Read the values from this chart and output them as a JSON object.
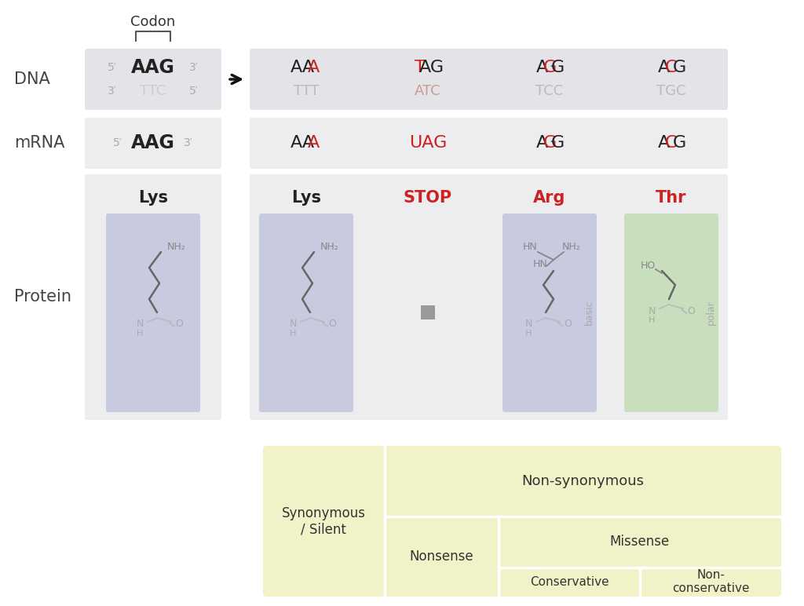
{
  "background_color": "#ffffff",
  "panel_bg": "#e4e4e8",
  "panel_bg_light": "#ededf0",
  "blue_bg": "#c8cadf",
  "green_bg": "#c8dfbe",
  "yellow_bg": "#f2f2c8",
  "title_codon": "Codon",
  "dna_top_cols": [
    [
      [
        "AA",
        "#222222"
      ],
      [
        "A",
        "#cc2222"
      ]
    ],
    [
      [
        "T",
        "#cc2222"
      ],
      [
        "AG",
        "#222222"
      ]
    ],
    [
      [
        "A",
        "#222222"
      ],
      [
        "G",
        "#cc2222"
      ],
      [
        "G",
        "#222222"
      ]
    ],
    [
      [
        "A",
        "#222222"
      ],
      [
        "C",
        "#cc2222"
      ],
      [
        "G",
        "#222222"
      ]
    ]
  ],
  "dna_bot_cols": [
    [
      [
        "TTT",
        "#bbbbbb"
      ]
    ],
    [
      [
        "ATC",
        "#cc9999"
      ]
    ],
    [
      [
        "TCC",
        "#bbbbbb"
      ]
    ],
    [
      [
        "TGC",
        "#bbbbbb"
      ]
    ]
  ],
  "mrna_cols": [
    [
      [
        "AA",
        "#222222"
      ],
      [
        "A",
        "#cc2222"
      ]
    ],
    [
      [
        "UAG",
        "#cc2222"
      ]
    ],
    [
      [
        "A",
        "#222222"
      ],
      [
        "G",
        "#cc2222"
      ],
      [
        "G",
        "#222222"
      ]
    ],
    [
      [
        "A",
        "#222222"
      ],
      [
        "C",
        "#cc2222"
      ],
      [
        "G",
        "#222222"
      ]
    ]
  ],
  "protein_cols": [
    "Lys",
    "STOP",
    "Arg",
    "Thr"
  ],
  "protein_colors": [
    "#222222",
    "#cc2222",
    "#cc2222",
    "#cc2222"
  ]
}
